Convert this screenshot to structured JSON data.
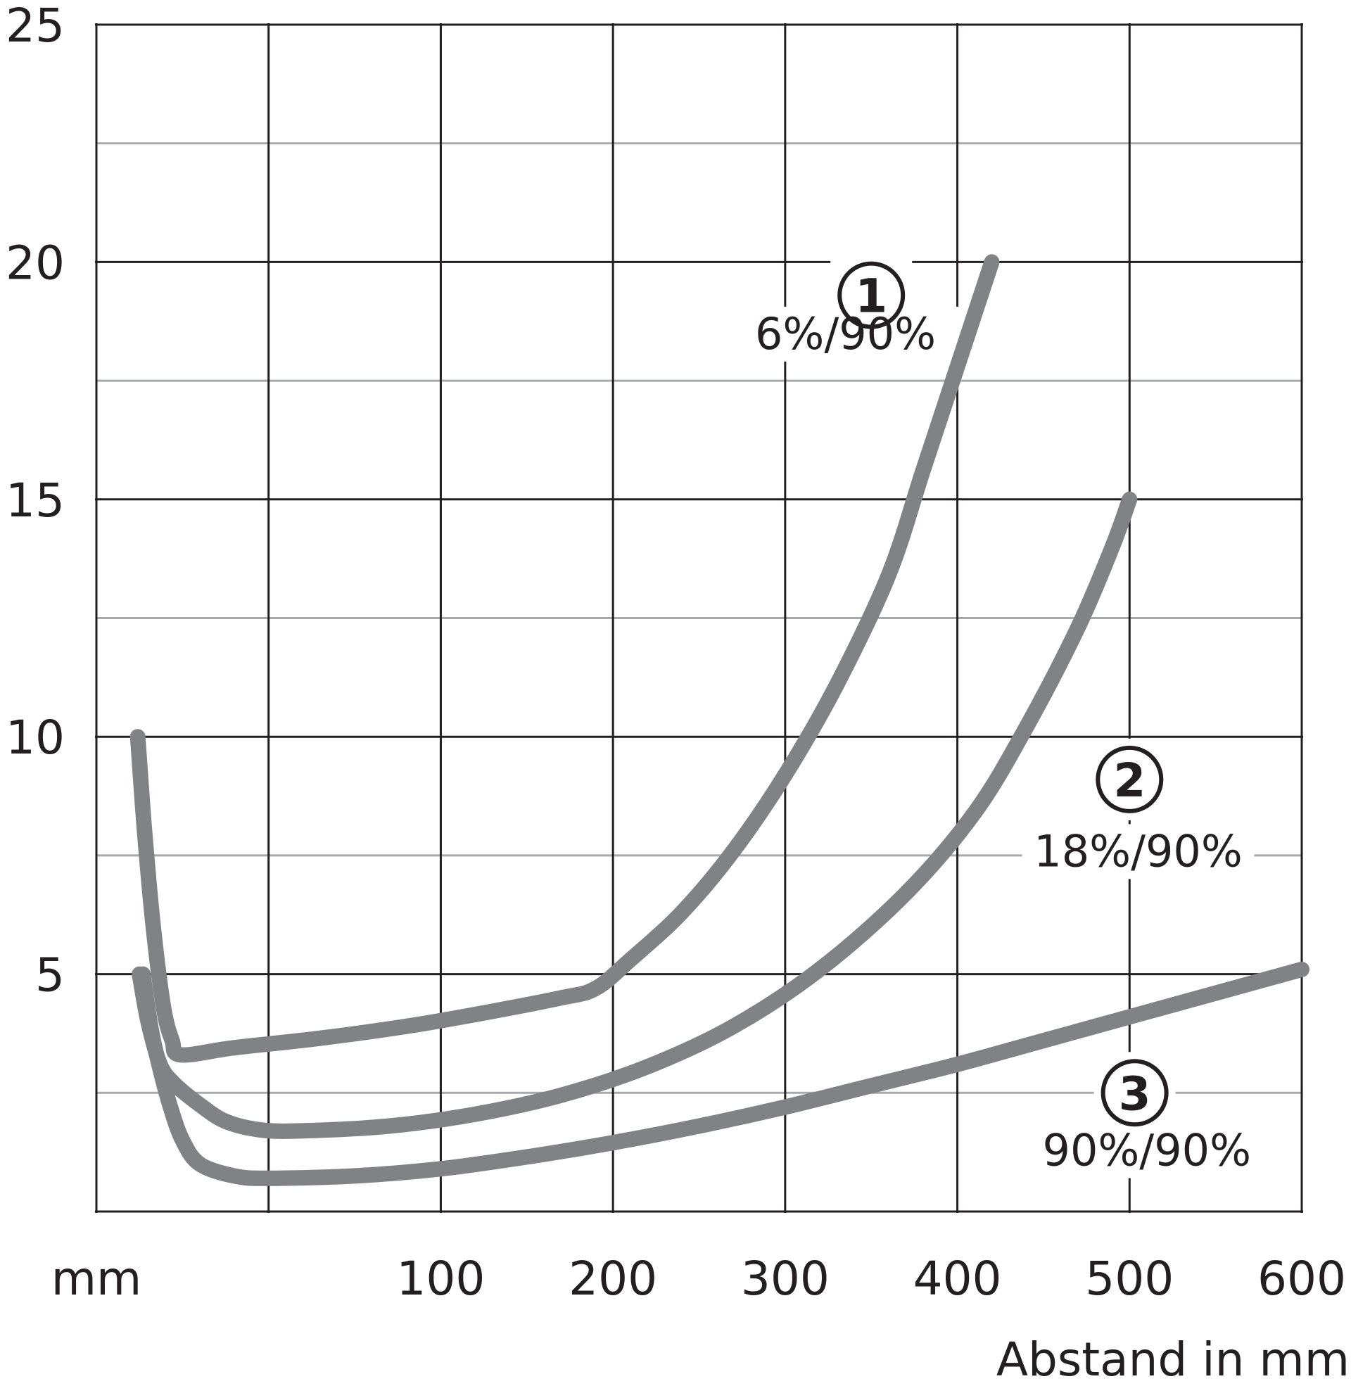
{
  "chart_data": {
    "type": "line",
    "title": "",
    "xlabel": "Abstand in mm",
    "x_unit": "mm",
    "ylabel": "",
    "xlim": [
      -100,
      600
    ],
    "ylim": [
      0,
      25
    ],
    "x_ticks": [
      "100",
      "200",
      "300",
      "400",
      "500",
      "600"
    ],
    "y_ticks": [
      "5",
      "10",
      "15",
      "20",
      "25"
    ],
    "grid": {
      "major_x": [
        0,
        100,
        200,
        300,
        400,
        500,
        600
      ],
      "major_y": [
        0,
        5,
        10,
        15,
        20,
        25
      ],
      "minor_y": [
        2.5,
        7.5,
        12.5,
        17.5,
        22.5
      ]
    },
    "series_color": "#808285",
    "grid_major_color": "#231f20",
    "grid_minor_color": "#a7a9ac",
    "series": [
      {
        "marker": "①",
        "name": "6%/90%",
        "points": [
          [
            -76,
            10
          ],
          [
            -72,
            8
          ],
          [
            -67,
            6
          ],
          [
            -61,
            4.3
          ],
          [
            -56,
            3.6
          ],
          [
            -51,
            3.3
          ],
          [
            -20,
            3.45
          ],
          [
            30,
            3.65
          ],
          [
            80,
            3.9
          ],
          [
            120,
            4.15
          ],
          [
            170,
            4.5
          ],
          [
            190,
            4.7
          ],
          [
            210,
            5.3
          ],
          [
            240,
            6.3
          ],
          [
            270,
            7.6
          ],
          [
            300,
            9.2
          ],
          [
            330,
            11.1
          ],
          [
            360,
            13.4
          ],
          [
            380,
            15.6
          ],
          [
            400,
            17.8
          ],
          [
            420,
            20
          ]
        ]
      },
      {
        "marker": "②",
        "name": "18%/90%",
        "points": [
          [
            -75,
            5
          ],
          [
            -70,
            4
          ],
          [
            -63,
            3.1
          ],
          [
            -55,
            2.7
          ],
          [
            -40,
            2.25
          ],
          [
            -25,
            1.9
          ],
          [
            -5,
            1.72
          ],
          [
            20,
            1.7
          ],
          [
            70,
            1.8
          ],
          [
            120,
            2.05
          ],
          [
            170,
            2.45
          ],
          [
            220,
            3.05
          ],
          [
            270,
            3.9
          ],
          [
            320,
            5.1
          ],
          [
            370,
            6.7
          ],
          [
            410,
            8.4
          ],
          [
            440,
            10.2
          ],
          [
            470,
            12.3
          ],
          [
            490,
            14
          ],
          [
            500,
            15
          ]
        ]
      },
      {
        "marker": "③",
        "name": "90%/90%",
        "points": [
          [
            -73,
            5
          ],
          [
            -68,
            3.8
          ],
          [
            -63,
            3.0
          ],
          [
            -57,
            2.2
          ],
          [
            -50,
            1.5
          ],
          [
            -40,
            1.0
          ],
          [
            -20,
            0.75
          ],
          [
            0,
            0.7
          ],
          [
            50,
            0.75
          ],
          [
            100,
            0.9
          ],
          [
            150,
            1.15
          ],
          [
            200,
            1.45
          ],
          [
            250,
            1.8
          ],
          [
            300,
            2.2
          ],
          [
            350,
            2.65
          ],
          [
            400,
            3.1
          ],
          [
            450,
            3.6
          ],
          [
            500,
            4.1
          ],
          [
            550,
            4.6
          ],
          [
            600,
            5.1
          ]
        ]
      }
    ]
  }
}
